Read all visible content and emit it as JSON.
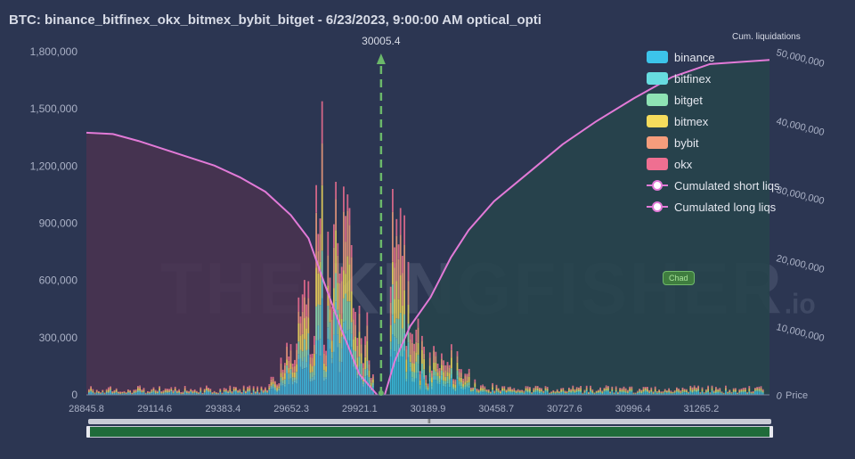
{
  "title": "BTC: binance_bitfinex_okx_bitmex_bybit_bitget - 6/23/2023, 9:00:00 AM optical_opti",
  "right_axis_title": "Cum. liquidations",
  "right_axis_suffix": "Price",
  "badge": "Chad",
  "watermark": {
    "main": "THE KINGFISHER",
    "suffix": ".io"
  },
  "slider_grip": "III",
  "legend": [
    {
      "label": "binance",
      "color": "#3cc4ea"
    },
    {
      "label": "bitfinex",
      "color": "#67dce0"
    },
    {
      "label": "bitget",
      "color": "#8ee3b4"
    },
    {
      "label": "bitmex",
      "color": "#f5dc5c"
    },
    {
      "label": "bybit",
      "color": "#f59d7c"
    },
    {
      "label": "okx",
      "color": "#ef6f91"
    },
    {
      "label": "Cumulated short liqs",
      "color": "#e27ad7"
    },
    {
      "label": "Cumulated long liqs",
      "color": "#e27ad7"
    }
  ],
  "chart_data": {
    "type": "bar",
    "current_price": 30005.4,
    "current_price_label": "30005.4",
    "x_ticks": [
      "28845.8",
      "29114.6",
      "29383.4",
      "29652.3",
      "29921.1",
      "30189.9",
      "30458.7",
      "30727.6",
      "30996.4",
      "31265.2"
    ],
    "xlim": [
      28845.8,
      31534.0
    ],
    "y_ticks": [
      "1,800,000",
      "1,500,000",
      "1,200,000",
      "900,000",
      "600,000",
      "300,000",
      "0"
    ],
    "ylim": [
      0,
      1800000
    ],
    "y2_ticks": [
      "50,000,000",
      "40,000,000",
      "30,000,000",
      "20,000,000",
      "10,000,000",
      "0"
    ],
    "y2lim": [
      0,
      50000000
    ],
    "series_names": [
      "binance",
      "bitfinex",
      "bitget",
      "bitmex",
      "bybit",
      "okx"
    ],
    "bars_note_peaks": [
      {
        "x": 29770,
        "total": 1540000
      },
      {
        "x": 29750,
        "total": 1100000
      },
      {
        "x": 30050,
        "total": 1080000
      },
      {
        "x": 30080,
        "total": 980000
      },
      {
        "x": 29880,
        "total": 980000
      }
    ],
    "cum_long": [
      {
        "x": 28845.8,
        "y": 38200000
      },
      {
        "x": 28950,
        "y": 38000000
      },
      {
        "x": 29050,
        "y": 37000000
      },
      {
        "x": 29150,
        "y": 35800000
      },
      {
        "x": 29250,
        "y": 34600000
      },
      {
        "x": 29350,
        "y": 33400000
      },
      {
        "x": 29450,
        "y": 31700000
      },
      {
        "x": 29550,
        "y": 29600000
      },
      {
        "x": 29650,
        "y": 26200000
      },
      {
        "x": 29720,
        "y": 22800000
      },
      {
        "x": 29780,
        "y": 16500000
      },
      {
        "x": 29850,
        "y": 9500000
      },
      {
        "x": 29920,
        "y": 3000000
      },
      {
        "x": 29990,
        "y": 0
      }
    ],
    "cum_short": [
      {
        "x": 30020,
        "y": 0
      },
      {
        "x": 30060,
        "y": 5000000
      },
      {
        "x": 30120,
        "y": 10000000
      },
      {
        "x": 30200,
        "y": 14200000
      },
      {
        "x": 30280,
        "y": 20000000
      },
      {
        "x": 30350,
        "y": 24000000
      },
      {
        "x": 30450,
        "y": 28200000
      },
      {
        "x": 30600,
        "y": 32800000
      },
      {
        "x": 30720,
        "y": 36500000
      },
      {
        "x": 30850,
        "y": 39800000
      },
      {
        "x": 31000,
        "y": 43200000
      },
      {
        "x": 31150,
        "y": 46300000
      },
      {
        "x": 31300,
        "y": 48200000
      },
      {
        "x": 31534,
        "y": 48800000
      }
    ]
  }
}
